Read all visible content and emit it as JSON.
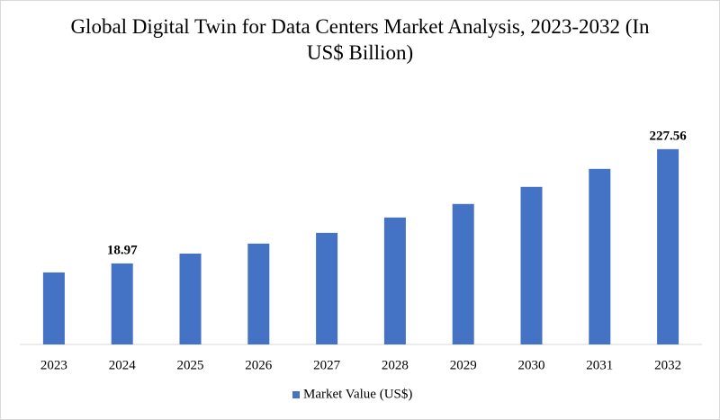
{
  "chart_data": {
    "type": "bar",
    "title": "Global Digital Twin for Data Centers Market Analysis, 2023-2032 (In US$ Billion)",
    "categories": [
      "2023",
      "2024",
      "2025",
      "2026",
      "2027",
      "2028",
      "2029",
      "2030",
      "2031",
      "2032"
    ],
    "series": [
      {
        "name": "Market Value (US$)",
        "color": "#4472c4",
        "values": [
          15.6,
          18.97,
          23.5,
          29.2,
          36.9,
          51.5,
          69.1,
          100.2,
          148.1,
          227.56
        ],
        "value_labels": [
          null,
          "18.97",
          null,
          null,
          null,
          null,
          null,
          null,
          null,
          "227.56"
        ]
      }
    ],
    "ylim": [
      3.26,
      400
    ],
    "log_scale": true,
    "grid": false,
    "legend": "bottom"
  }
}
